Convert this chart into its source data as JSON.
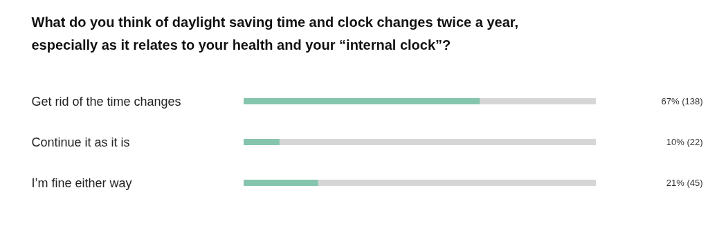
{
  "chart_data": {
    "type": "bar",
    "orientation": "horizontal",
    "title": "What do you think of daylight saving time and clock changes twice a year,\nespecially as it relates to your health and your “internal clock”?",
    "categories": [
      "Get rid of the time changes",
      "Continue it as it is",
      "I’m fine either way"
    ],
    "values": [
      67,
      10,
      21
    ],
    "value_labels": [
      "67% (138)",
      "10% (22)",
      "21% (45)"
    ],
    "color": "#86c5ad",
    "xlim": [
      0,
      100
    ],
    "bands": [
      {
        "axis": "x",
        "from": 0,
        "to": 100,
        "color": "#d6d6d6"
      }
    ]
  }
}
